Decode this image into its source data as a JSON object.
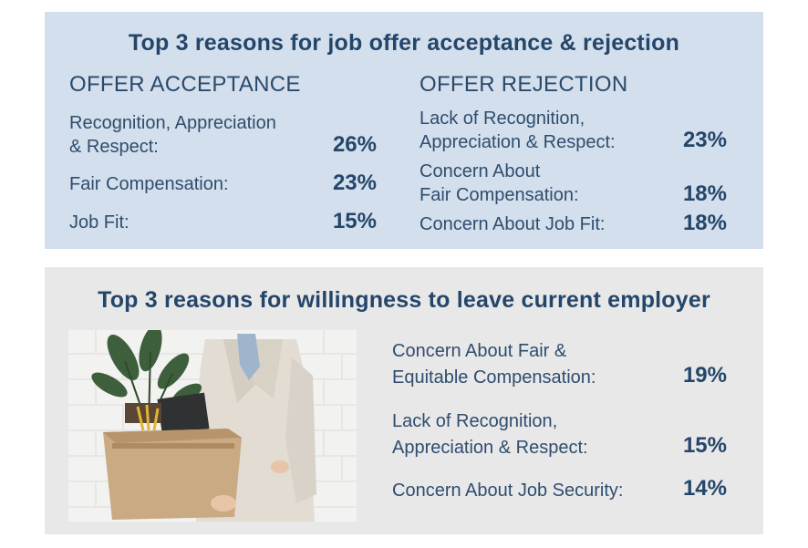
{
  "chart_data": [
    {
      "type": "table",
      "title": "Top 3 reasons for job offer acceptance & rejection",
      "groups": [
        {
          "name": "OFFER ACCEPTANCE",
          "rows": [
            {
              "label_lines": [
                "Recognition, Appreciation",
                "& Respect:"
              ],
              "value": 26,
              "display": "26%"
            },
            {
              "label_lines": [
                "Fair Compensation:"
              ],
              "value": 23,
              "display": "23%"
            },
            {
              "label_lines": [
                "Job Fit:"
              ],
              "value": 15,
              "display": "15%"
            }
          ]
        },
        {
          "name": "OFFER REJECTION",
          "rows": [
            {
              "label_lines": [
                "Lack of Recognition,",
                "Appreciation & Respect:"
              ],
              "value": 23,
              "display": "23%"
            },
            {
              "label_lines": [
                "Concern About",
                "Fair Compensation:"
              ],
              "value": 18,
              "display": "18%"
            },
            {
              "label_lines": [
                "Concern About Job Fit:"
              ],
              "value": 18,
              "display": "18%"
            }
          ]
        }
      ]
    },
    {
      "type": "table",
      "title": "Top 3 reasons for willingness to leave current employer",
      "rows": [
        {
          "label_lines": [
            "Concern About Fair &",
            "Equitable Compensation:"
          ],
          "value": 19,
          "display": "19%"
        },
        {
          "label_lines": [
            "Lack of Recognition,",
            "Appreciation & Respect:"
          ],
          "value": 15,
          "display": "15%"
        },
        {
          "label_lines": [
            "Concern About Job Security:"
          ],
          "value": 14,
          "display": "14%"
        }
      ]
    }
  ],
  "colors": {
    "top_panel": "#d3dfec",
    "bottom_panel": "#e8e8e9",
    "heading": "#24466b",
    "text": "#2f4d6e"
  },
  "image": {
    "icon": "person-carrying-box-photo"
  }
}
